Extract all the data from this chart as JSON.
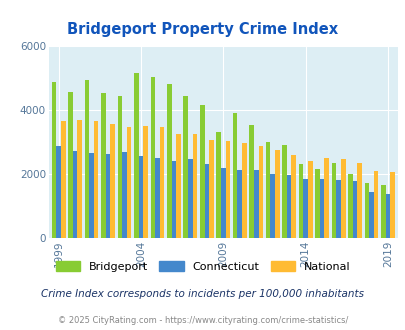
{
  "title": "Bridgeport Property Crime Index",
  "subtitle": "Crime Index corresponds to incidents per 100,000 inhabitants",
  "footer": "© 2025 CityRating.com - https://www.cityrating.com/crime-statistics/",
  "years": [
    1999,
    2000,
    2001,
    2002,
    2003,
    2004,
    2005,
    2006,
    2007,
    2008,
    2009,
    2010,
    2011,
    2012,
    2013,
    2014,
    2015,
    2016,
    2017,
    2018,
    2019
  ],
  "bridgeport": [
    4880,
    4550,
    4950,
    4520,
    4450,
    5150,
    5020,
    4820,
    4450,
    4160,
    3320,
    3910,
    3530,
    3010,
    2900,
    2300,
    2160,
    2340,
    1990,
    1700,
    1650
  ],
  "connecticut": [
    2880,
    2710,
    2650,
    2620,
    2680,
    2570,
    2500,
    2390,
    2460,
    2300,
    2180,
    2130,
    2110,
    1990,
    1960,
    1830,
    1830,
    1800,
    1780,
    1440,
    1380
  ],
  "national": [
    3650,
    3680,
    3650,
    3560,
    3470,
    3490,
    3460,
    3250,
    3240,
    3060,
    3040,
    2960,
    2870,
    2760,
    2590,
    2400,
    2500,
    2450,
    2330,
    2100,
    2060
  ],
  "colors": {
    "bridgeport": "#88cc33",
    "connecticut": "#4488cc",
    "national": "#ffbb33",
    "plot_bg": "#ddeef4"
  },
  "ylim": [
    0,
    6000
  ],
  "yticks": [
    0,
    2000,
    4000,
    6000
  ],
  "tick_years": [
    1999,
    2004,
    2009,
    2014,
    2019
  ],
  "bar_width": 0.28,
  "legend_labels": [
    "Bridgeport",
    "Connecticut",
    "National"
  ],
  "title_color": "#1155bb",
  "subtitle_color": "#1a3366",
  "footer_color": "#888888"
}
